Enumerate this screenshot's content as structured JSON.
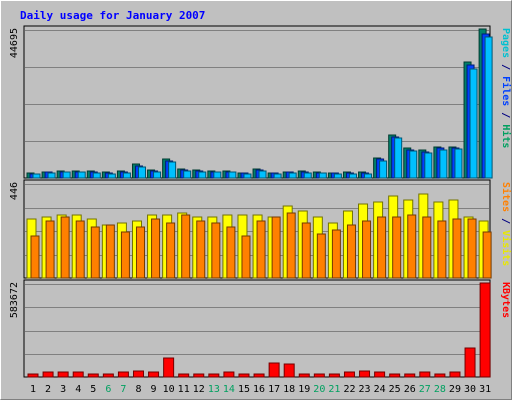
{
  "chart_data": {
    "type": "bar",
    "title": "Daily usage for January 2007",
    "categories": [
      "1",
      "2",
      "3",
      "4",
      "5",
      "6",
      "7",
      "8",
      "9",
      "10",
      "11",
      "12",
      "13",
      "14",
      "15",
      "16",
      "17",
      "18",
      "19",
      "20",
      "21",
      "22",
      "23",
      "24",
      "25",
      "26",
      "27",
      "28",
      "29",
      "30",
      "31"
    ],
    "weekend_days": [
      "6",
      "7",
      "13",
      "14",
      "20",
      "21",
      "27",
      "28"
    ],
    "panels": [
      {
        "id": "requests",
        "ymax_label": "44695",
        "ymax": 44695,
        "ylabels": [
          {
            "text": "Pages",
            "color": "#00c0d0"
          },
          {
            "text": " / ",
            "color": "#000080"
          },
          {
            "text": "Files",
            "color": "#0040ff"
          },
          {
            "text": " / ",
            "color": "#000080"
          },
          {
            "text": "Hits",
            "color": "#00a060"
          }
        ],
        "series": [
          {
            "name": "Hits",
            "color": "#00806a",
            "values": [
              1500,
              1900,
              2200,
              2100,
              2000,
              1800,
              2000,
              4200,
              2500,
              5800,
              2600,
              2400,
              2100,
              2100,
              1600,
              2600,
              1600,
              1900,
              2000,
              1800,
              1600,
              1700,
              1700,
              6100,
              13100,
              9100,
              8500,
              9500,
              9500,
              35000,
              45000
            ]
          },
          {
            "name": "Files",
            "color": "#0040ff",
            "values": [
              1300,
              1700,
              1900,
              1900,
              1800,
              1500,
              1700,
              3600,
              2200,
              5200,
              2300,
              2200,
              1900,
              1900,
              1400,
              2300,
              1400,
              1700,
              1700,
              1600,
              1400,
              1500,
              1500,
              5600,
              12500,
              8600,
              8000,
              9000,
              9100,
              34000,
              43500
            ]
          },
          {
            "name": "Pages",
            "color": "#00c0ff",
            "values": [
              1100,
              1500,
              1700,
              1700,
              1600,
              1300,
              1500,
              3200,
              1900,
              4800,
              2000,
              1900,
              1700,
              1700,
              1200,
              2000,
              1200,
              1500,
              1500,
              1400,
              1200,
              1300,
              1300,
              5200,
              12000,
              8200,
              7600,
              8600,
              8700,
              33000,
              42500
            ]
          }
        ]
      },
      {
        "id": "sites",
        "ymax_label": "446",
        "ymax": 446,
        "ylabels": [
          {
            "text": "Sites",
            "color": "#ff8000"
          },
          {
            "text": " / ",
            "color": "#000080"
          },
          {
            "text": "Visits",
            "color": "#e8e800"
          }
        ],
        "series": [
          {
            "name": "Visits",
            "color": "#ffff00",
            "values": [
              280,
              290,
              300,
              300,
              280,
              250,
              260,
              270,
              300,
              300,
              310,
              290,
              290,
              300,
              300,
              300,
              290,
              340,
              320,
              290,
              260,
              320,
              350,
              360,
              390,
              370,
              400,
              360,
              370,
              290,
              270
            ]
          },
          {
            "name": "Sites",
            "color": "#ff8000",
            "values": [
              200,
              270,
              290,
              270,
              240,
              250,
              220,
              240,
              280,
              260,
              300,
              270,
              260,
              240,
              200,
              270,
              290,
              310,
              260,
              210,
              230,
              250,
              270,
              290,
              290,
              300,
              290,
              270,
              280,
              280,
              220
            ]
          }
        ]
      },
      {
        "id": "kbytes",
        "ymax_label": "583672",
        "ymax": 583672,
        "ylabels": [
          {
            "text": "KBytes",
            "color": "#ff0000"
          }
        ],
        "series": [
          {
            "name": "KBytes",
            "color": "#ff0000",
            "values": [
              20000,
              30000,
              30000,
              30000,
              20000,
              20000,
              30000,
              40000,
              30000,
              120000,
              20000,
              20000,
              20000,
              30000,
              20000,
              20000,
              90000,
              80000,
              20000,
              20000,
              20000,
              30000,
              40000,
              30000,
              20000,
              20000,
              30000,
              20000,
              30000,
              180000,
              590000
            ]
          }
        ]
      }
    ]
  }
}
